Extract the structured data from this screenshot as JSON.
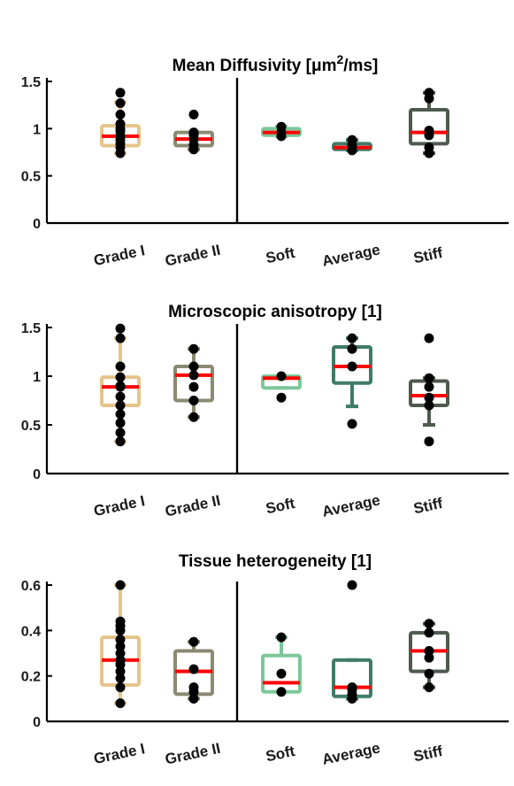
{
  "chart_data": [
    {
      "type": "box",
      "title": "Mean Diffusivity [μm²/ms]",
      "title_main": "Mean Diffusivity [μm",
      "title_sup": "2",
      "title_tail": "/ms]",
      "xlabel": "",
      "ylabel": "",
      "ylim": [
        0,
        1.5
      ],
      "yticks": [
        {
          "value": 0,
          "label": "0"
        },
        {
          "value": 0.5,
          "label": "0.5"
        },
        {
          "value": 1,
          "label": "1"
        },
        {
          "value": 1.5,
          "label": "1.5"
        }
      ],
      "categories": [
        "Grade I",
        "Grade II",
        "Soft",
        "Average",
        "Stiff"
      ],
      "groups": [
        {
          "label": "Grade I",
          "color": "#E5C58A",
          "box": {
            "whisker_low": 0.74,
            "q1": 0.82,
            "median": 0.92,
            "q3": 1.03,
            "whisker_high": 1.28
          },
          "points": [
            0.74,
            0.8,
            0.84,
            0.88,
            0.92,
            0.97,
            1.0,
            1.05,
            1.15,
            1.27,
            1.38
          ]
        },
        {
          "label": "Grade II",
          "color": "#8B8A72",
          "box": {
            "whisker_low": 0.78,
            "q1": 0.82,
            "median": 0.89,
            "q3": 0.96,
            "whisker_high": 0.96
          },
          "points": [
            0.78,
            0.83,
            0.89,
            0.93,
            0.96,
            1.15
          ]
        },
        {
          "label": "Soft",
          "color": "#7CC79A",
          "box": {
            "whisker_low": 0.92,
            "q1": 0.93,
            "median": 0.96,
            "q3": 1.0,
            "whisker_high": 1.02
          },
          "points": [
            0.92,
            0.96,
            1.02
          ]
        },
        {
          "label": "Average",
          "color": "#3F7B68",
          "box": {
            "whisker_low": 0.77,
            "q1": 0.78,
            "median": 0.8,
            "q3": 0.84,
            "whisker_high": 0.88
          },
          "points": [
            0.77,
            0.8,
            0.83,
            0.88
          ]
        },
        {
          "label": "Stiff",
          "color": "#4F5A4F",
          "box": {
            "whisker_low": 0.74,
            "q1": 0.84,
            "median": 0.96,
            "q3": 1.2,
            "whisker_high": 1.38
          },
          "points": [
            0.74,
            0.8,
            0.93,
            0.98,
            1.32,
            1.38
          ]
        }
      ]
    },
    {
      "type": "box",
      "title": "Microscopic anisotropy [1]",
      "title_main": "Microscopic anisotropy [1]",
      "title_sup": "",
      "title_tail": "",
      "xlabel": "",
      "ylabel": "",
      "ylim": [
        0,
        1.5
      ],
      "yticks": [
        {
          "value": 0,
          "label": "0"
        },
        {
          "value": 0.5,
          "label": "0.5"
        },
        {
          "value": 1,
          "label": "1"
        },
        {
          "value": 1.5,
          "label": "1.5"
        }
      ],
      "categories": [
        "Grade I",
        "Grade II",
        "Soft",
        "Average",
        "Stiff"
      ],
      "groups": [
        {
          "label": "Grade I",
          "color": "#E5C58A",
          "box": {
            "whisker_low": 0.33,
            "q1": 0.7,
            "median": 0.89,
            "q3": 0.99,
            "whisker_high": 1.39
          },
          "points": [
            0.33,
            0.42,
            0.52,
            0.61,
            0.7,
            0.79,
            0.89,
            0.9,
            0.99,
            1.1,
            1.39,
            1.49
          ]
        },
        {
          "label": "Grade II",
          "color": "#8B8A72",
          "box": {
            "whisker_low": 0.58,
            "q1": 0.75,
            "median": 1.01,
            "q3": 1.1,
            "whisker_high": 1.28
          },
          "points": [
            0.58,
            0.75,
            0.89,
            1.01,
            1.1,
            1.28
          ]
        },
        {
          "label": "Soft",
          "color": "#7CC79A",
          "box": {
            "whisker_low": 0.88,
            "q1": 0.88,
            "median": 0.98,
            "q3": 1.0,
            "whisker_high": 1.0
          },
          "points": [
            0.78,
            1.0
          ]
        },
        {
          "label": "Average",
          "color": "#3F7B68",
          "box": {
            "whisker_low": 0.69,
            "q1": 0.93,
            "median": 1.1,
            "q3": 1.3,
            "whisker_high": 1.39
          },
          "points": [
            0.51,
            1.1,
            1.28,
            1.39
          ]
        },
        {
          "label": "Stiff",
          "color": "#4F5A4F",
          "box": {
            "whisker_low": 0.5,
            "q1": 0.7,
            "median": 0.8,
            "q3": 0.95,
            "whisker_high": 0.98
          },
          "points": [
            0.33,
            0.7,
            0.78,
            0.89,
            0.98,
            1.39
          ]
        }
      ]
    },
    {
      "type": "box",
      "title": "Tissue heterogeneity [1]",
      "title_main": "Tissue heterogeneity [1]",
      "title_sup": "",
      "title_tail": "",
      "xlabel": "",
      "ylabel": "",
      "ylim": [
        0,
        0.65
      ],
      "yticks": [
        {
          "value": 0,
          "label": "0"
        },
        {
          "value": 0.2,
          "label": "0.2"
        },
        {
          "value": 0.4,
          "label": "0.4"
        },
        {
          "value": 0.6,
          "label": "0.6"
        }
      ],
      "categories": [
        "Grade I",
        "Grade II",
        "Soft",
        "Average",
        "Stiff"
      ],
      "groups": [
        {
          "label": "Grade I",
          "color": "#E5C58A",
          "box": {
            "whisker_low": 0.08,
            "q1": 0.16,
            "median": 0.27,
            "q3": 0.37,
            "whisker_high": 0.6
          },
          "points": [
            0.08,
            0.15,
            0.19,
            0.22,
            0.25,
            0.27,
            0.3,
            0.33,
            0.36,
            0.4,
            0.42,
            0.44,
            0.6
          ]
        },
        {
          "label": "Grade II",
          "color": "#8B8A72",
          "box": {
            "whisker_low": 0.1,
            "q1": 0.12,
            "median": 0.22,
            "q3": 0.31,
            "whisker_high": 0.35
          },
          "points": [
            0.1,
            0.13,
            0.15,
            0.23,
            0.35
          ]
        },
        {
          "label": "Soft",
          "color": "#7CC79A",
          "box": {
            "whisker_low": 0.13,
            "q1": 0.13,
            "median": 0.17,
            "q3": 0.29,
            "whisker_high": 0.37
          },
          "points": [
            0.13,
            0.21,
            0.37
          ]
        },
        {
          "label": "Average",
          "color": "#3F7B68",
          "box": {
            "whisker_low": 0.1,
            "q1": 0.11,
            "median": 0.15,
            "q3": 0.27,
            "whisker_high": 0.27
          },
          "points": [
            0.1,
            0.12,
            0.14,
            0.15,
            0.6
          ]
        },
        {
          "label": "Stiff",
          "color": "#4F5A4F",
          "box": {
            "whisker_low": 0.15,
            "q1": 0.22,
            "median": 0.31,
            "q3": 0.39,
            "whisker_high": 0.43
          },
          "points": [
            0.15,
            0.21,
            0.28,
            0.31,
            0.39,
            0.43
          ]
        }
      ]
    }
  ],
  "colors": {
    "median": "#FF0000",
    "points": "#000000",
    "axis": "#000000"
  }
}
